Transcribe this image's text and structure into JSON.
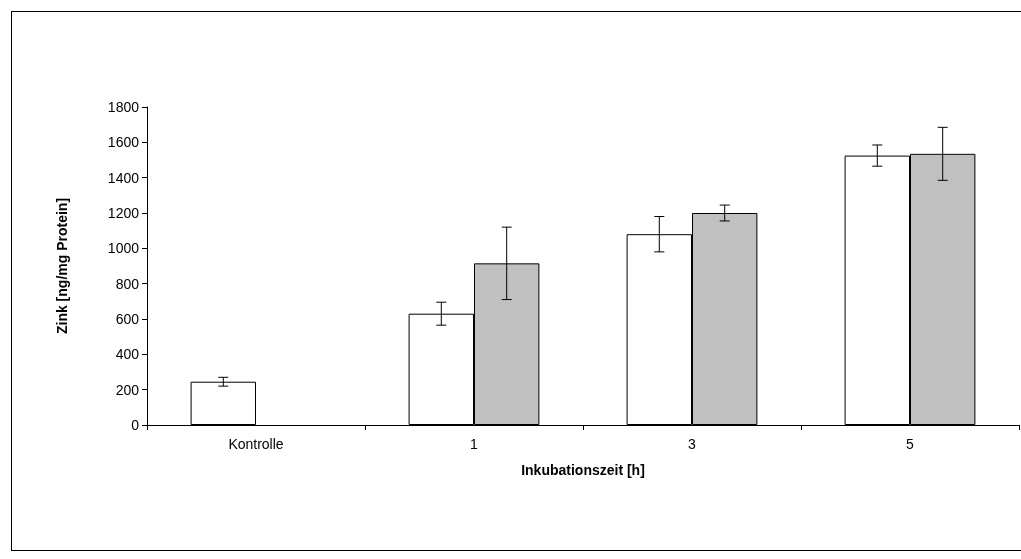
{
  "chart_data": {
    "type": "bar",
    "xlabel": "Inkubationszeit [h]",
    "ylabel": "Zink [ng/mg Protein]",
    "categories": [
      "Kontrolle",
      "1",
      "3",
      "5"
    ],
    "series": [
      {
        "color": "#ffffff",
        "values": [
          245,
          630,
          1080,
          1525
        ],
        "errors": [
          25,
          65,
          100,
          60
        ]
      },
      {
        "color": "#c0c0c0",
        "values": [
          null,
          915,
          1200,
          1535
        ],
        "errors": [
          null,
          205,
          45,
          150
        ]
      }
    ],
    "ylim": [
      0,
      1800
    ],
    "yticks": [
      0,
      200,
      400,
      600,
      800,
      1000,
      1200,
      1400,
      1600,
      1800
    ],
    "grid": false
  }
}
